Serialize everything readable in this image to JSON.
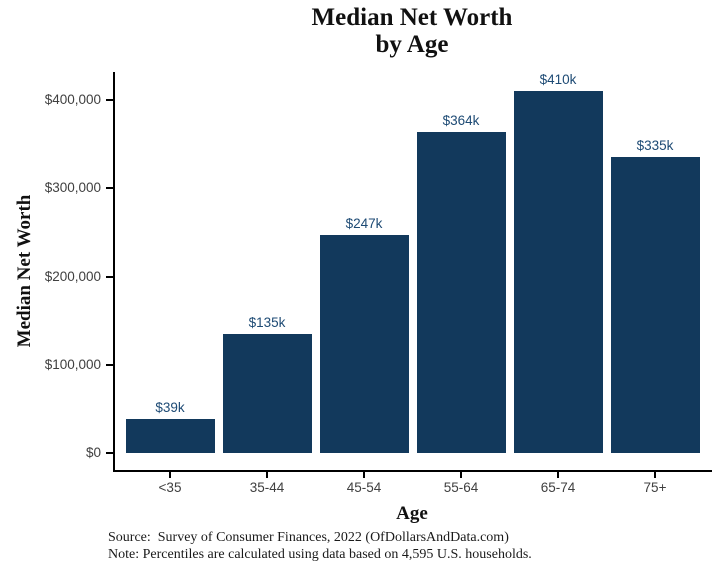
{
  "title": {
    "line1": "Median Net Worth",
    "line2": "by Age"
  },
  "axes": {
    "x_label": "Age",
    "y_label": "Median Net Worth"
  },
  "footer": {
    "source": "Source:  Survey of Consumer Finances, 2022 (OfDollarsAndData.com)",
    "note": "Note: Percentiles are calculated using data based on 4,595 U.S. households."
  },
  "colors": {
    "bar": "#12395C",
    "bar_label": "#1d4a74",
    "tick_text": "#404040",
    "axis": "#000000"
  },
  "chart_data": {
    "type": "bar",
    "title": "Median Net Worth by Age",
    "xlabel": "Age",
    "ylabel": "Median Net Worth",
    "categories": [
      "<35",
      "35-44",
      "45-54",
      "55-64",
      "65-74",
      "75+"
    ],
    "values": [
      39000,
      135000,
      247000,
      364000,
      410000,
      335000
    ],
    "bar_labels": [
      "$39k",
      "$135k",
      "$247k",
      "$364k",
      "$410k",
      "$335k"
    ],
    "y_tick_values": [
      0,
      100000,
      200000,
      300000,
      400000
    ],
    "y_tick_labels": [
      "$0",
      "$100,000",
      "$200,000",
      "$300,000",
      "$400,000"
    ],
    "ylim": [
      0,
      450000
    ],
    "grid": false,
    "legend": false,
    "bar_color": "#12395C"
  }
}
